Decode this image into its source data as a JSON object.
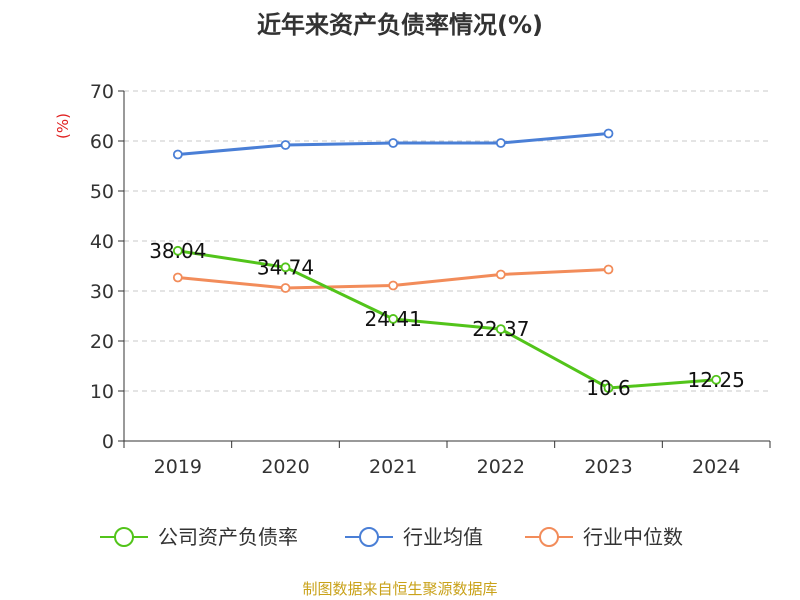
{
  "chart_data": {
    "type": "line",
    "title": "近年来资产负债率情况(%)",
    "ylabel": "(%)",
    "ylim": [
      0,
      70
    ],
    "yticks": [
      0,
      10,
      20,
      30,
      40,
      50,
      60,
      70
    ],
    "grid": true,
    "legend_position": "bottom",
    "categories": [
      "2019",
      "2020",
      "2021",
      "2022",
      "2023",
      "2024"
    ],
    "series": [
      {
        "name": "公司资产负债率",
        "color": "#52c41a",
        "show_labels": true,
        "values": [
          38.04,
          34.74,
          24.41,
          22.37,
          10.6,
          12.25
        ]
      },
      {
        "name": "行业均值",
        "color": "#4a7fd6",
        "show_labels": false,
        "values": [
          57.3,
          59.2,
          59.6,
          59.6,
          61.5,
          null
        ]
      },
      {
        "name": "行业中位数",
        "color": "#f28c5a",
        "show_labels": false,
        "values": [
          32.7,
          30.6,
          31.1,
          33.3,
          34.3,
          null
        ]
      }
    ],
    "source_note": "制图数据来自恒生聚源数据库",
    "axis_color": "#333333",
    "ylabel_color": "#e02020",
    "source_color": "#c9a21a"
  }
}
